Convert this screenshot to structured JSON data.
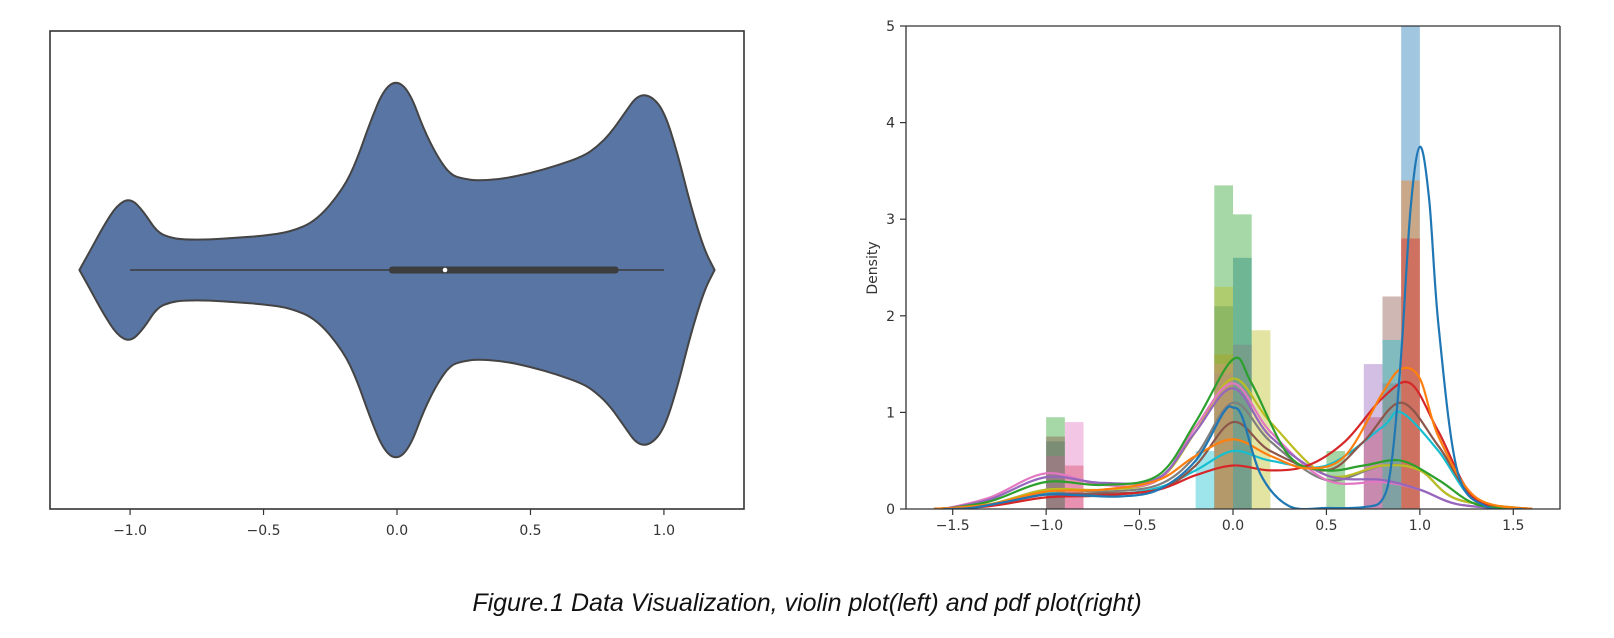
{
  "caption": "Figure.1 Data Visualization, violin plot(left) and pdf plot(right)",
  "chart_data": [
    {
      "type": "violin",
      "title": "",
      "xlabel": "",
      "ylabel": "",
      "xlim": [
        -1.3,
        1.3
      ],
      "xticks": [
        -1.0,
        -0.5,
        0.0,
        0.5,
        1.0
      ],
      "xtick_labels": [
        "−1.0",
        "−0.5",
        "0.0",
        "0.5",
        "1.0"
      ],
      "fill_color": "#5975a4",
      "edge_color": "#444444",
      "density_profile": {
        "x": [
          -1.19,
          -1.15,
          -1.1,
          -1.05,
          -1.0,
          -0.95,
          -0.9,
          -0.85,
          -0.8,
          -0.7,
          -0.6,
          -0.5,
          -0.4,
          -0.3,
          -0.2,
          -0.15,
          -0.1,
          -0.05,
          0.0,
          0.05,
          0.1,
          0.15,
          0.2,
          0.25,
          0.3,
          0.4,
          0.5,
          0.6,
          0.7,
          0.75,
          0.8,
          0.85,
          0.9,
          0.95,
          1.0,
          1.05,
          1.1,
          1.15,
          1.19
        ],
        "half_width": [
          0.0,
          0.1,
          0.23,
          0.34,
          0.38,
          0.31,
          0.2,
          0.17,
          0.16,
          0.16,
          0.17,
          0.18,
          0.2,
          0.26,
          0.43,
          0.58,
          0.78,
          0.95,
          1.0,
          0.93,
          0.74,
          0.6,
          0.5,
          0.48,
          0.47,
          0.48,
          0.51,
          0.55,
          0.6,
          0.65,
          0.72,
          0.82,
          0.92,
          0.92,
          0.84,
          0.62,
          0.34,
          0.11,
          0.0
        ]
      },
      "whisker_min": -1.0,
      "whisker_max": 1.0,
      "q1": -0.03,
      "q3": 0.83,
      "median": 0.18
    },
    {
      "type": "histogram_kde",
      "title": "",
      "xlabel": "",
      "ylabel": "Density",
      "xlim": [
        -1.75,
        1.75
      ],
      "ylim": [
        0,
        5
      ],
      "xticks": [
        -1.5,
        -1.0,
        -0.5,
        0.0,
        0.5,
        1.0,
        1.5
      ],
      "xtick_labels": [
        "−1.5",
        "−1.0",
        "−0.5",
        "0.0",
        "0.5",
        "1.0",
        "1.5"
      ],
      "yticks": [
        0,
        1,
        2,
        3,
        4,
        5
      ],
      "ytick_labels": [
        "0",
        "1",
        "2",
        "3",
        "4",
        "5"
      ],
      "grid": false,
      "legend": "none",
      "series": [
        {
          "color": "#1f77b4",
          "hist": [
            {
              "x0": -1.0,
              "x1": -0.9,
              "h": 0.7
            },
            {
              "x0": -0.1,
              "x1": 0.0,
              "h": 2.1
            },
            {
              "x0": 0.0,
              "x1": 0.1,
              "h": 2.6
            },
            {
              "x0": 0.9,
              "x1": 1.0,
              "h": 5.0
            }
          ],
          "kde": {
            "x": [
              -1.55,
              -1.4,
              -1.2,
              -1.0,
              -0.8,
              -0.6,
              -0.4,
              -0.2,
              -0.05,
              0.0,
              0.05,
              0.15,
              0.3,
              0.5,
              0.7,
              0.8,
              0.85,
              0.9,
              0.95,
              1.0,
              1.05,
              1.1,
              1.2,
              1.35,
              1.55
            ],
            "y": [
              0.0,
              0.01,
              0.08,
              0.15,
              0.14,
              0.13,
              0.2,
              0.5,
              1.0,
              1.05,
              0.95,
              0.35,
              0.03,
              0.01,
              0.02,
              0.1,
              0.5,
              1.6,
              3.1,
              3.75,
              3.2,
              1.9,
              0.4,
              0.03,
              0.0
            ]
          }
        },
        {
          "color": "#ff7f0e",
          "hist": [
            {
              "x0": 0.9,
              "x1": 1.0,
              "h": 3.4
            },
            {
              "x0": -0.1,
              "x1": 0.0,
              "h": 1.6
            }
          ],
          "kde": {
            "x": [
              -1.6,
              -1.3,
              -1.0,
              -0.7,
              -0.4,
              -0.2,
              0.0,
              0.2,
              0.4,
              0.6,
              0.8,
              0.9,
              1.0,
              1.1,
              1.3,
              1.6
            ],
            "y": [
              0.0,
              0.05,
              0.18,
              0.2,
              0.3,
              0.55,
              0.72,
              0.55,
              0.42,
              0.55,
              1.2,
              1.45,
              1.35,
              0.75,
              0.12,
              0.0
            ]
          }
        },
        {
          "color": "#2ca02c",
          "hist": [
            {
              "x0": -1.0,
              "x1": -0.9,
              "h": 0.95
            },
            {
              "x0": -0.1,
              "x1": 0.0,
              "h": 3.35
            },
            {
              "x0": 0.0,
              "x1": 0.1,
              "h": 3.05
            },
            {
              "x0": 0.5,
              "x1": 0.6,
              "h": 0.6
            }
          ],
          "kde": {
            "x": [
              -1.55,
              -1.3,
              -1.0,
              -0.7,
              -0.4,
              -0.2,
              0.0,
              0.1,
              0.3,
              0.5,
              0.7,
              0.9,
              1.1,
              1.3,
              1.55
            ],
            "y": [
              0.0,
              0.08,
              0.28,
              0.25,
              0.35,
              0.9,
              1.55,
              1.3,
              0.55,
              0.4,
              0.45,
              0.5,
              0.3,
              0.05,
              0.0
            ]
          }
        },
        {
          "color": "#d62728",
          "hist": [
            {
              "x0": 0.9,
              "x1": 1.0,
              "h": 2.8
            },
            {
              "x0": -0.9,
              "x1": -0.8,
              "h": 0.45
            },
            {
              "x0": 0.7,
              "x1": 0.8,
              "h": 0.95
            }
          ],
          "kde": {
            "x": [
              -1.6,
              -1.3,
              -1.0,
              -0.7,
              -0.4,
              -0.2,
              0.0,
              0.2,
              0.4,
              0.6,
              0.8,
              0.95,
              1.1,
              1.3,
              1.6
            ],
            "y": [
              0.0,
              0.03,
              0.12,
              0.14,
              0.2,
              0.35,
              0.45,
              0.4,
              0.45,
              0.7,
              1.15,
              1.3,
              0.8,
              0.1,
              0.0
            ]
          }
        },
        {
          "color": "#9467bd",
          "hist": [
            {
              "x0": -0.1,
              "x1": 0.0,
              "h": 1.4
            },
            {
              "x0": 0.7,
              "x1": 0.8,
              "h": 1.5
            }
          ],
          "kde": {
            "x": [
              -1.55,
              -1.3,
              -1.0,
              -0.7,
              -0.4,
              -0.2,
              0.0,
              0.2,
              0.5,
              0.8,
              1.0,
              1.2,
              1.5
            ],
            "y": [
              0.0,
              0.1,
              0.33,
              0.27,
              0.32,
              0.8,
              1.25,
              0.75,
              0.35,
              0.3,
              0.2,
              0.05,
              0.0
            ]
          }
        },
        {
          "color": "#e377c2",
          "hist": [
            {
              "x0": -1.0,
              "x1": -0.9,
              "h": 0.55
            },
            {
              "x0": -0.9,
              "x1": -0.8,
              "h": 0.9
            },
            {
              "x0": -0.1,
              "x1": 0.0,
              "h": 1.5
            }
          ],
          "kde": {
            "x": [
              -1.55,
              -1.3,
              -1.0,
              -0.7,
              -0.4,
              -0.2,
              0.0,
              0.2,
              0.5,
              0.8,
              1.0,
              1.2,
              1.5
            ],
            "y": [
              0.0,
              0.12,
              0.37,
              0.25,
              0.3,
              0.85,
              1.3,
              0.8,
              0.3,
              0.28,
              0.2,
              0.05,
              0.0
            ]
          }
        },
        {
          "color": "#8c564b",
          "hist": [
            {
              "x0": 0.8,
              "x1": 0.9,
              "h": 2.2
            },
            {
              "x0": -1.0,
              "x1": -0.9,
              "h": 0.75
            }
          ],
          "kde": {
            "x": [
              -1.6,
              -1.3,
              -1.0,
              -0.7,
              -0.4,
              -0.2,
              0.0,
              0.2,
              0.5,
              0.7,
              0.9,
              1.1,
              1.3,
              1.6
            ],
            "y": [
              0.0,
              0.04,
              0.15,
              0.16,
              0.2,
              0.45,
              0.9,
              0.6,
              0.4,
              0.7,
              1.1,
              0.65,
              0.1,
              0.0
            ]
          }
        },
        {
          "color": "#bcbd22",
          "hist": [
            {
              "x0": 0.1,
              "x1": 0.2,
              "h": 1.85
            },
            {
              "x0": -0.1,
              "x1": 0.0,
              "h": 2.3
            }
          ],
          "kde": {
            "x": [
              -1.6,
              -1.3,
              -1.0,
              -0.7,
              -0.4,
              -0.2,
              0.0,
              0.2,
              0.5,
              0.8,
              1.0,
              1.2,
              1.6
            ],
            "y": [
              0.0,
              0.05,
              0.2,
              0.2,
              0.3,
              0.8,
              1.35,
              0.9,
              0.35,
              0.45,
              0.4,
              0.1,
              0.0
            ]
          }
        },
        {
          "color": "#17becf",
          "hist": [
            {
              "x0": 0.8,
              "x1": 0.9,
              "h": 1.75
            },
            {
              "x0": -0.2,
              "x1": -0.1,
              "h": 0.6
            }
          ],
          "kde": {
            "x": [
              -1.6,
              -1.3,
              -1.0,
              -0.7,
              -0.4,
              -0.2,
              0.0,
              0.2,
              0.5,
              0.8,
              0.9,
              1.1,
              1.3,
              1.6
            ],
            "y": [
              0.0,
              0.04,
              0.16,
              0.14,
              0.22,
              0.4,
              0.6,
              0.5,
              0.45,
              0.85,
              1.0,
              0.6,
              0.08,
              0.0
            ]
          }
        },
        {
          "color": "#7f7f7f",
          "hist": [
            {
              "x0": 0.0,
              "x1": 0.1,
              "h": 1.7
            },
            {
              "x0": 0.8,
              "x1": 0.9,
              "h": 1.3
            }
          ],
          "kde": {
            "x": [
              -1.6,
              -1.3,
              -1.0,
              -0.7,
              -0.4,
              -0.2,
              0.0,
              0.2,
              0.5,
              0.8,
              1.0,
              1.2,
              1.6
            ],
            "y": [
              0.0,
              0.05,
              0.2,
              0.18,
              0.25,
              0.55,
              1.1,
              0.7,
              0.3,
              0.45,
              0.4,
              0.1,
              0.0
            ]
          }
        }
      ]
    }
  ]
}
